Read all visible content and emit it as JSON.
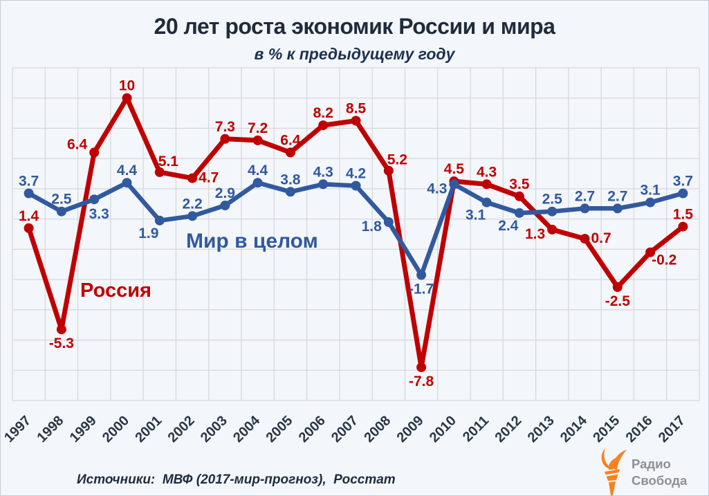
{
  "header": {
    "title": "20 лет роста экономик России и мира",
    "subtitle": "в % к предыдущему году"
  },
  "footer": {
    "source_note": "Источники:  МВФ (2017-мир-прогноз),  Росстат",
    "logo": {
      "line1": "Радио",
      "line2": "Свобода",
      "icon": "torch-flame-icon"
    }
  },
  "colors": {
    "background": "#f3f6fa",
    "grid": "#d6d8dc",
    "russia": "#c00000",
    "world": "#31599e",
    "title": "#212b3b",
    "axis_label": "#2b3645",
    "logo_flame": "#f58220",
    "logo_text": "#8e9093"
  },
  "chart_data": {
    "type": "line",
    "title": "20 лет роста экономик России и мира",
    "subtitle": "в % к предыдущему году",
    "source": "Источники:  МВФ (2017-мир-прогноз),  Росстат",
    "xlabel": "",
    "ylabel": "",
    "ylim": [
      -10,
      12
    ],
    "y_grid_step": 2,
    "grid": true,
    "legend_position": "inline-labels",
    "categories": [
      "1997",
      "1998",
      "1999",
      "2000",
      "2001",
      "2002",
      "2003",
      "2004",
      "2005",
      "2006",
      "2007",
      "2008",
      "2009",
      "2010",
      "2011",
      "2012",
      "2013",
      "2014",
      "2015",
      "2016",
      "2017"
    ],
    "series": [
      {
        "name": "Россия",
        "color_key": "russia",
        "values": [
          1.4,
          -5.3,
          6.4,
          10,
          5.1,
          4.7,
          7.3,
          7.2,
          6.4,
          8.2,
          8.5,
          5.2,
          -7.8,
          4.5,
          4.3,
          3.5,
          1.3,
          0.7,
          -2.5,
          -0.2,
          1.5
        ],
        "label_positions": [
          "a",
          "b",
          "al",
          "a",
          "ar",
          "r",
          "a",
          "a",
          "a",
          "a",
          "a",
          "ar",
          "b",
          "a",
          "a",
          "a",
          "l",
          "r",
          "b",
          "rb",
          "a"
        ]
      },
      {
        "name": "Мир в целом",
        "color_key": "world",
        "values": [
          3.7,
          2.5,
          3.3,
          4.4,
          1.9,
          2.2,
          2.9,
          4.4,
          3.8,
          4.3,
          4.2,
          1.8,
          -1.7,
          4.3,
          3.1,
          2.4,
          2.5,
          2.7,
          2.7,
          3.1,
          3.7
        ],
        "label_positions": [
          "a",
          "a",
          "br",
          "a",
          "bl",
          "a",
          "a",
          "a",
          "a",
          "a",
          "a",
          "l",
          "b",
          "l",
          "bl",
          "bl",
          "a",
          "a",
          "a",
          "a",
          "a"
        ]
      }
    ],
    "annotations": [
      {
        "text": "Россия",
        "color_key": "russia",
        "x": 115,
        "y": 428,
        "size": 29
      },
      {
        "text": "Мир в целом",
        "color_key": "world",
        "x": 268,
        "y": 357,
        "size": 30
      }
    ]
  }
}
